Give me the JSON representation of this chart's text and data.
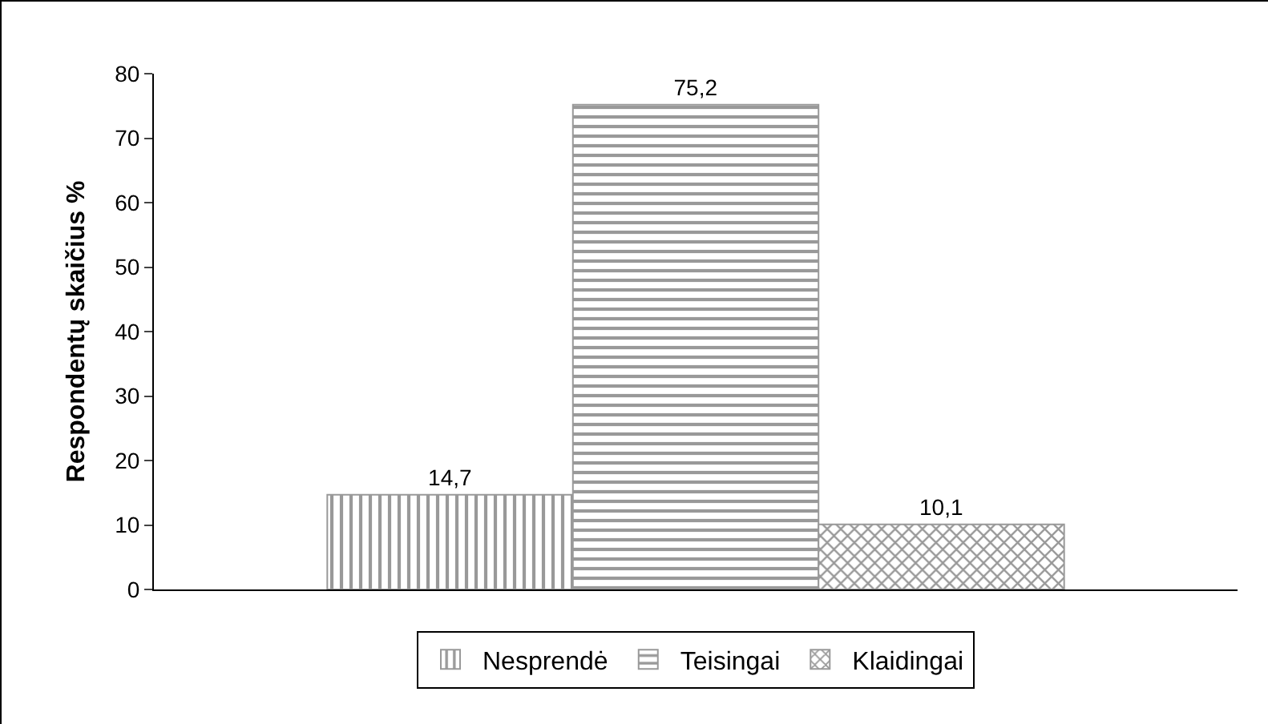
{
  "chart_data": {
    "type": "bar",
    "ylabel": "Respondentų skaičius %",
    "categories": [
      null
    ],
    "series": [
      {
        "name": "Nesprendė",
        "color": "#999999",
        "values": [
          14.7
        ],
        "value_labels": [
          "14,7"
        ]
      },
      {
        "name": "Teisingai",
        "color": "#999999",
        "values": [
          75.2
        ],
        "value_labels": [
          "75,2"
        ]
      },
      {
        "name": "Klaidingai",
        "color": "#999999",
        "values": [
          10.1
        ],
        "value_labels": [
          "10,1"
        ]
      }
    ],
    "ylim": [
      0,
      80
    ],
    "yticks": [
      0,
      10,
      20,
      30,
      40,
      50,
      60,
      70,
      80
    ],
    "grid": false,
    "legend": "bottom"
  }
}
